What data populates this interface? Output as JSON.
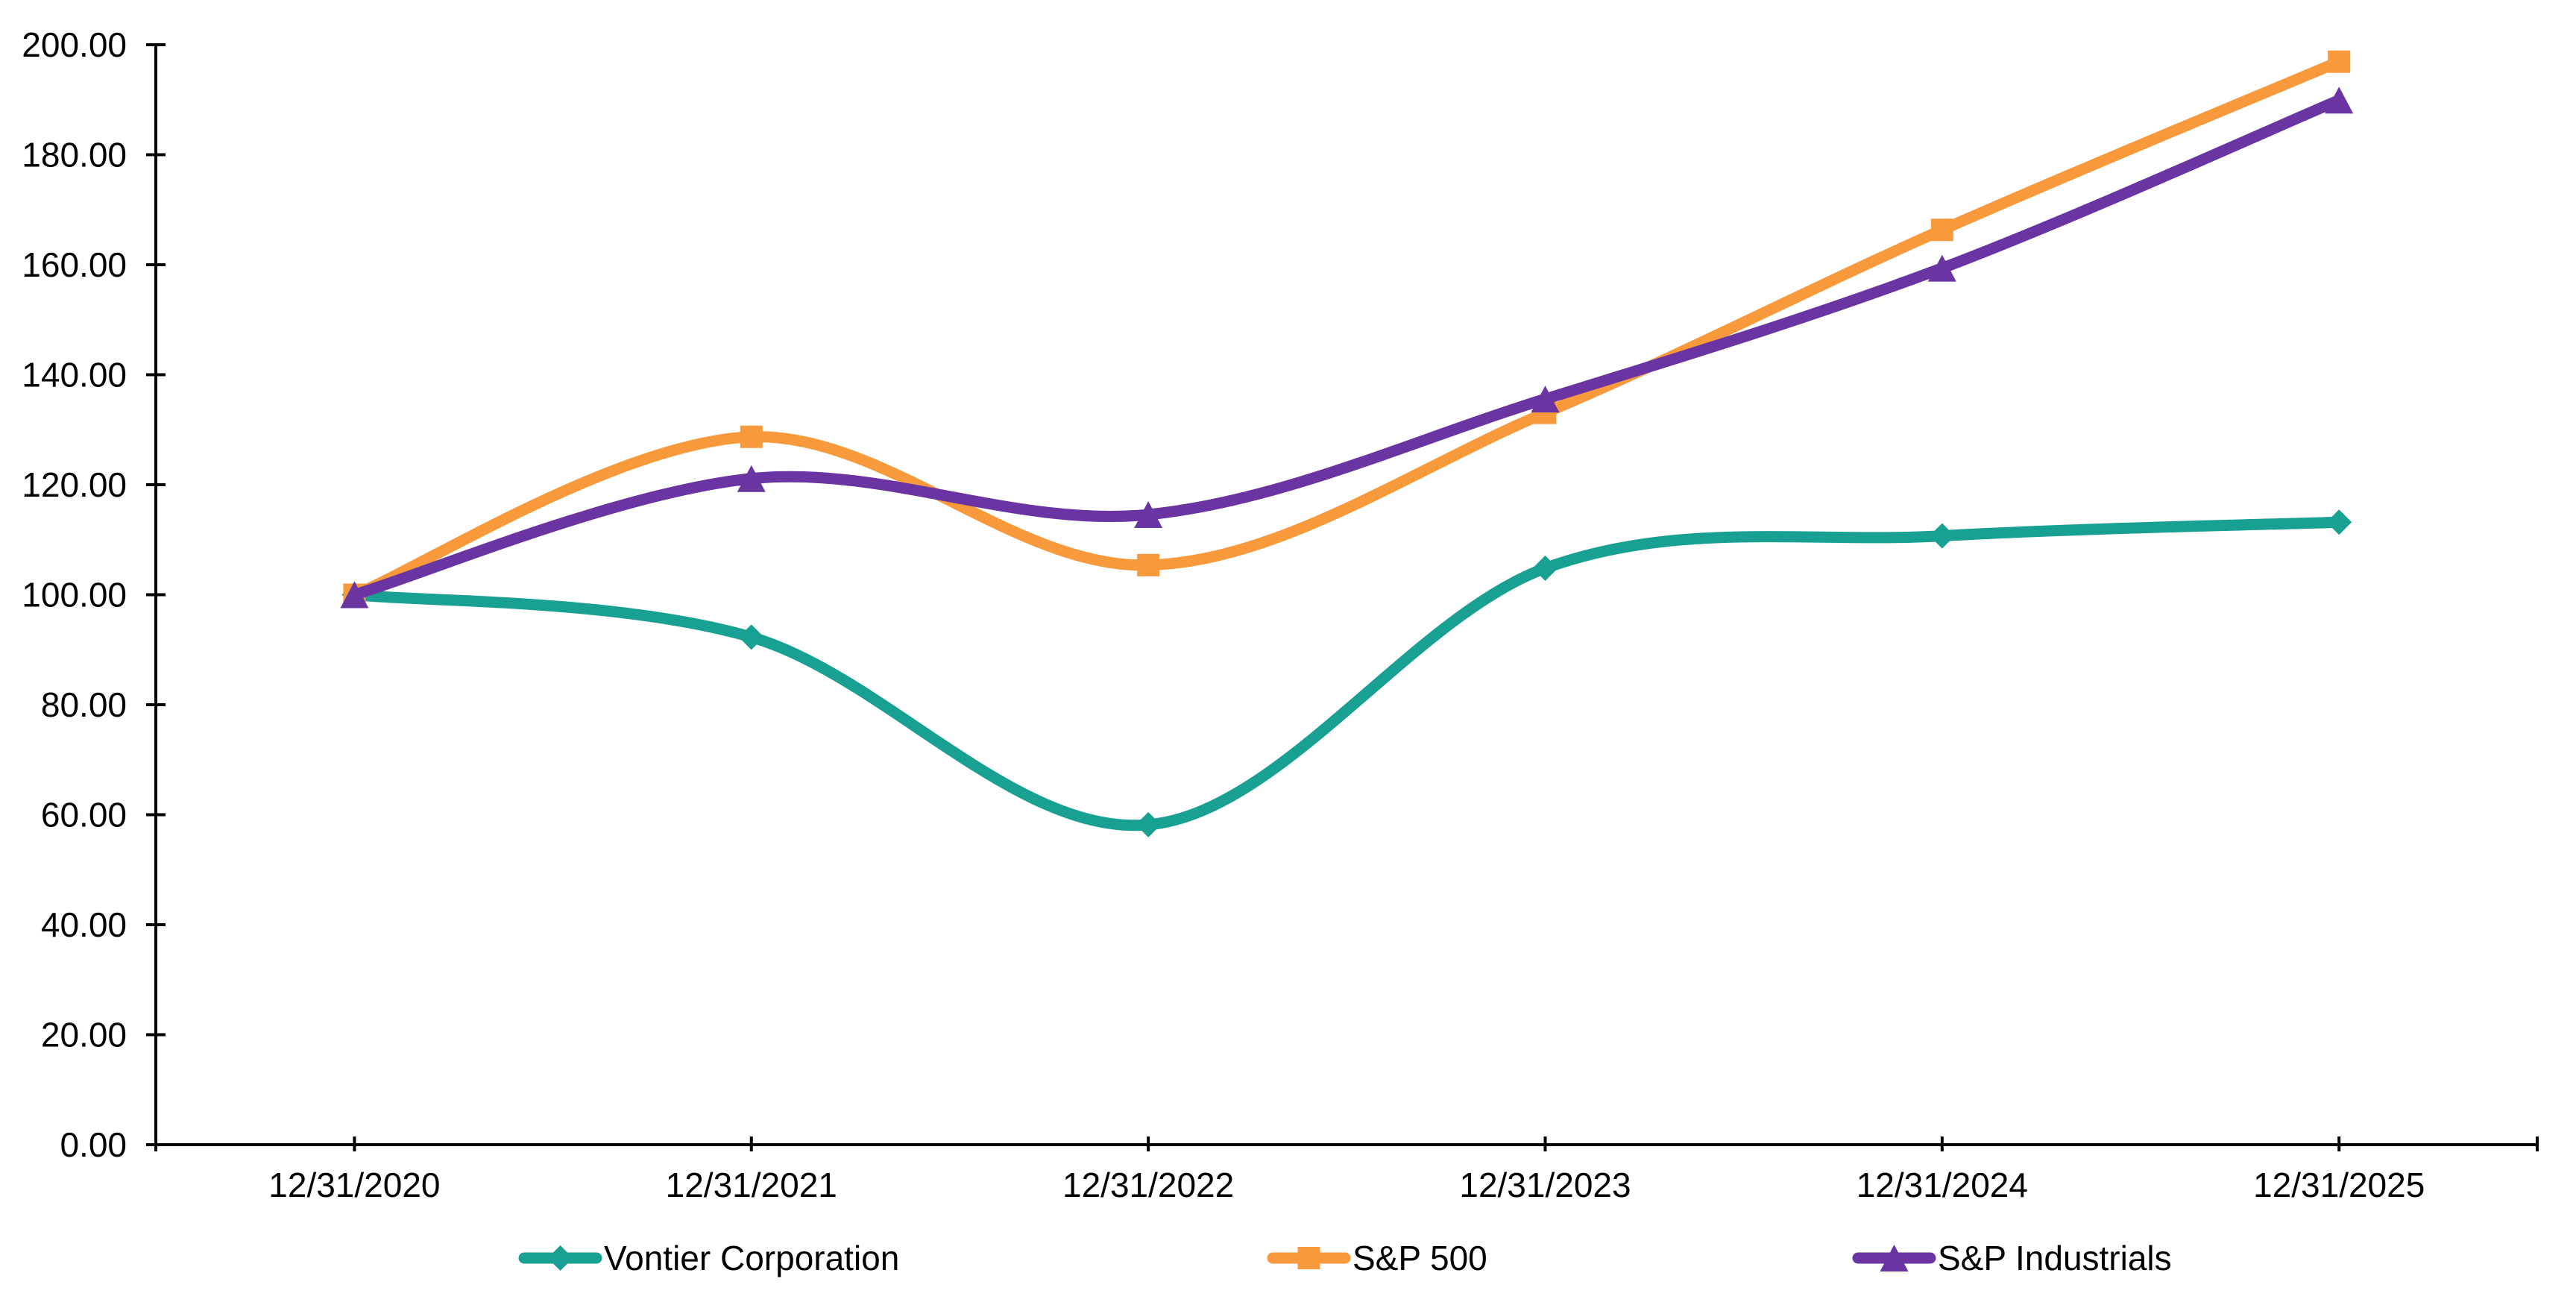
{
  "chart_data": {
    "type": "line",
    "title": "",
    "line_style": "smoothed",
    "grid": "off",
    "background": "#FFFFFF",
    "axis_color": "#000000",
    "text_color": "#000000",
    "legend_position": "bottom",
    "categories": [
      "12/31/2020",
      "12/31/2021",
      "12/31/2022",
      "12/31/2023",
      "12/31/2024",
      "12/31/2025"
    ],
    "series": [
      {
        "name": "Vontier Corporation",
        "color": "#18A092",
        "marker": "diamond",
        "values": [
          100.0,
          92.29,
          58.18,
          104.82,
          110.7,
          113.18
        ]
      },
      {
        "name": "S&P 500",
        "color": "#F8993C",
        "marker": "square",
        "values": [
          100.0,
          128.71,
          105.38,
          133.07,
          166.34,
          196.92
        ]
      },
      {
        "name": "S&P Industrials",
        "color": "#6A34A3",
        "marker": "triangle",
        "values": [
          100.0,
          121.12,
          114.57,
          135.58,
          159.38,
          189.93
        ]
      }
    ],
    "x_axis": {
      "tick_labels": [
        "12/31/2020",
        "12/31/2021",
        "12/31/2022",
        "12/31/2023",
        "12/31/2024",
        "12/31/2025"
      ]
    },
    "y_axis": {
      "min": 0,
      "max": 200,
      "step": 20,
      "tick_labels": [
        "0.00",
        "20.00",
        "40.00",
        "60.00",
        "80.00",
        "100.00",
        "120.00",
        "140.00",
        "160.00",
        "180.00",
        "200.00"
      ]
    },
    "legend": {
      "items": [
        {
          "label": "Vontier Corporation",
          "color": "#18A092",
          "marker": "diamond"
        },
        {
          "label": "S&P 500",
          "color": "#F8993C",
          "marker": "square"
        },
        {
          "label": "S&P Industrials",
          "color": "#6A34A3",
          "marker": "triangle"
        }
      ]
    }
  }
}
